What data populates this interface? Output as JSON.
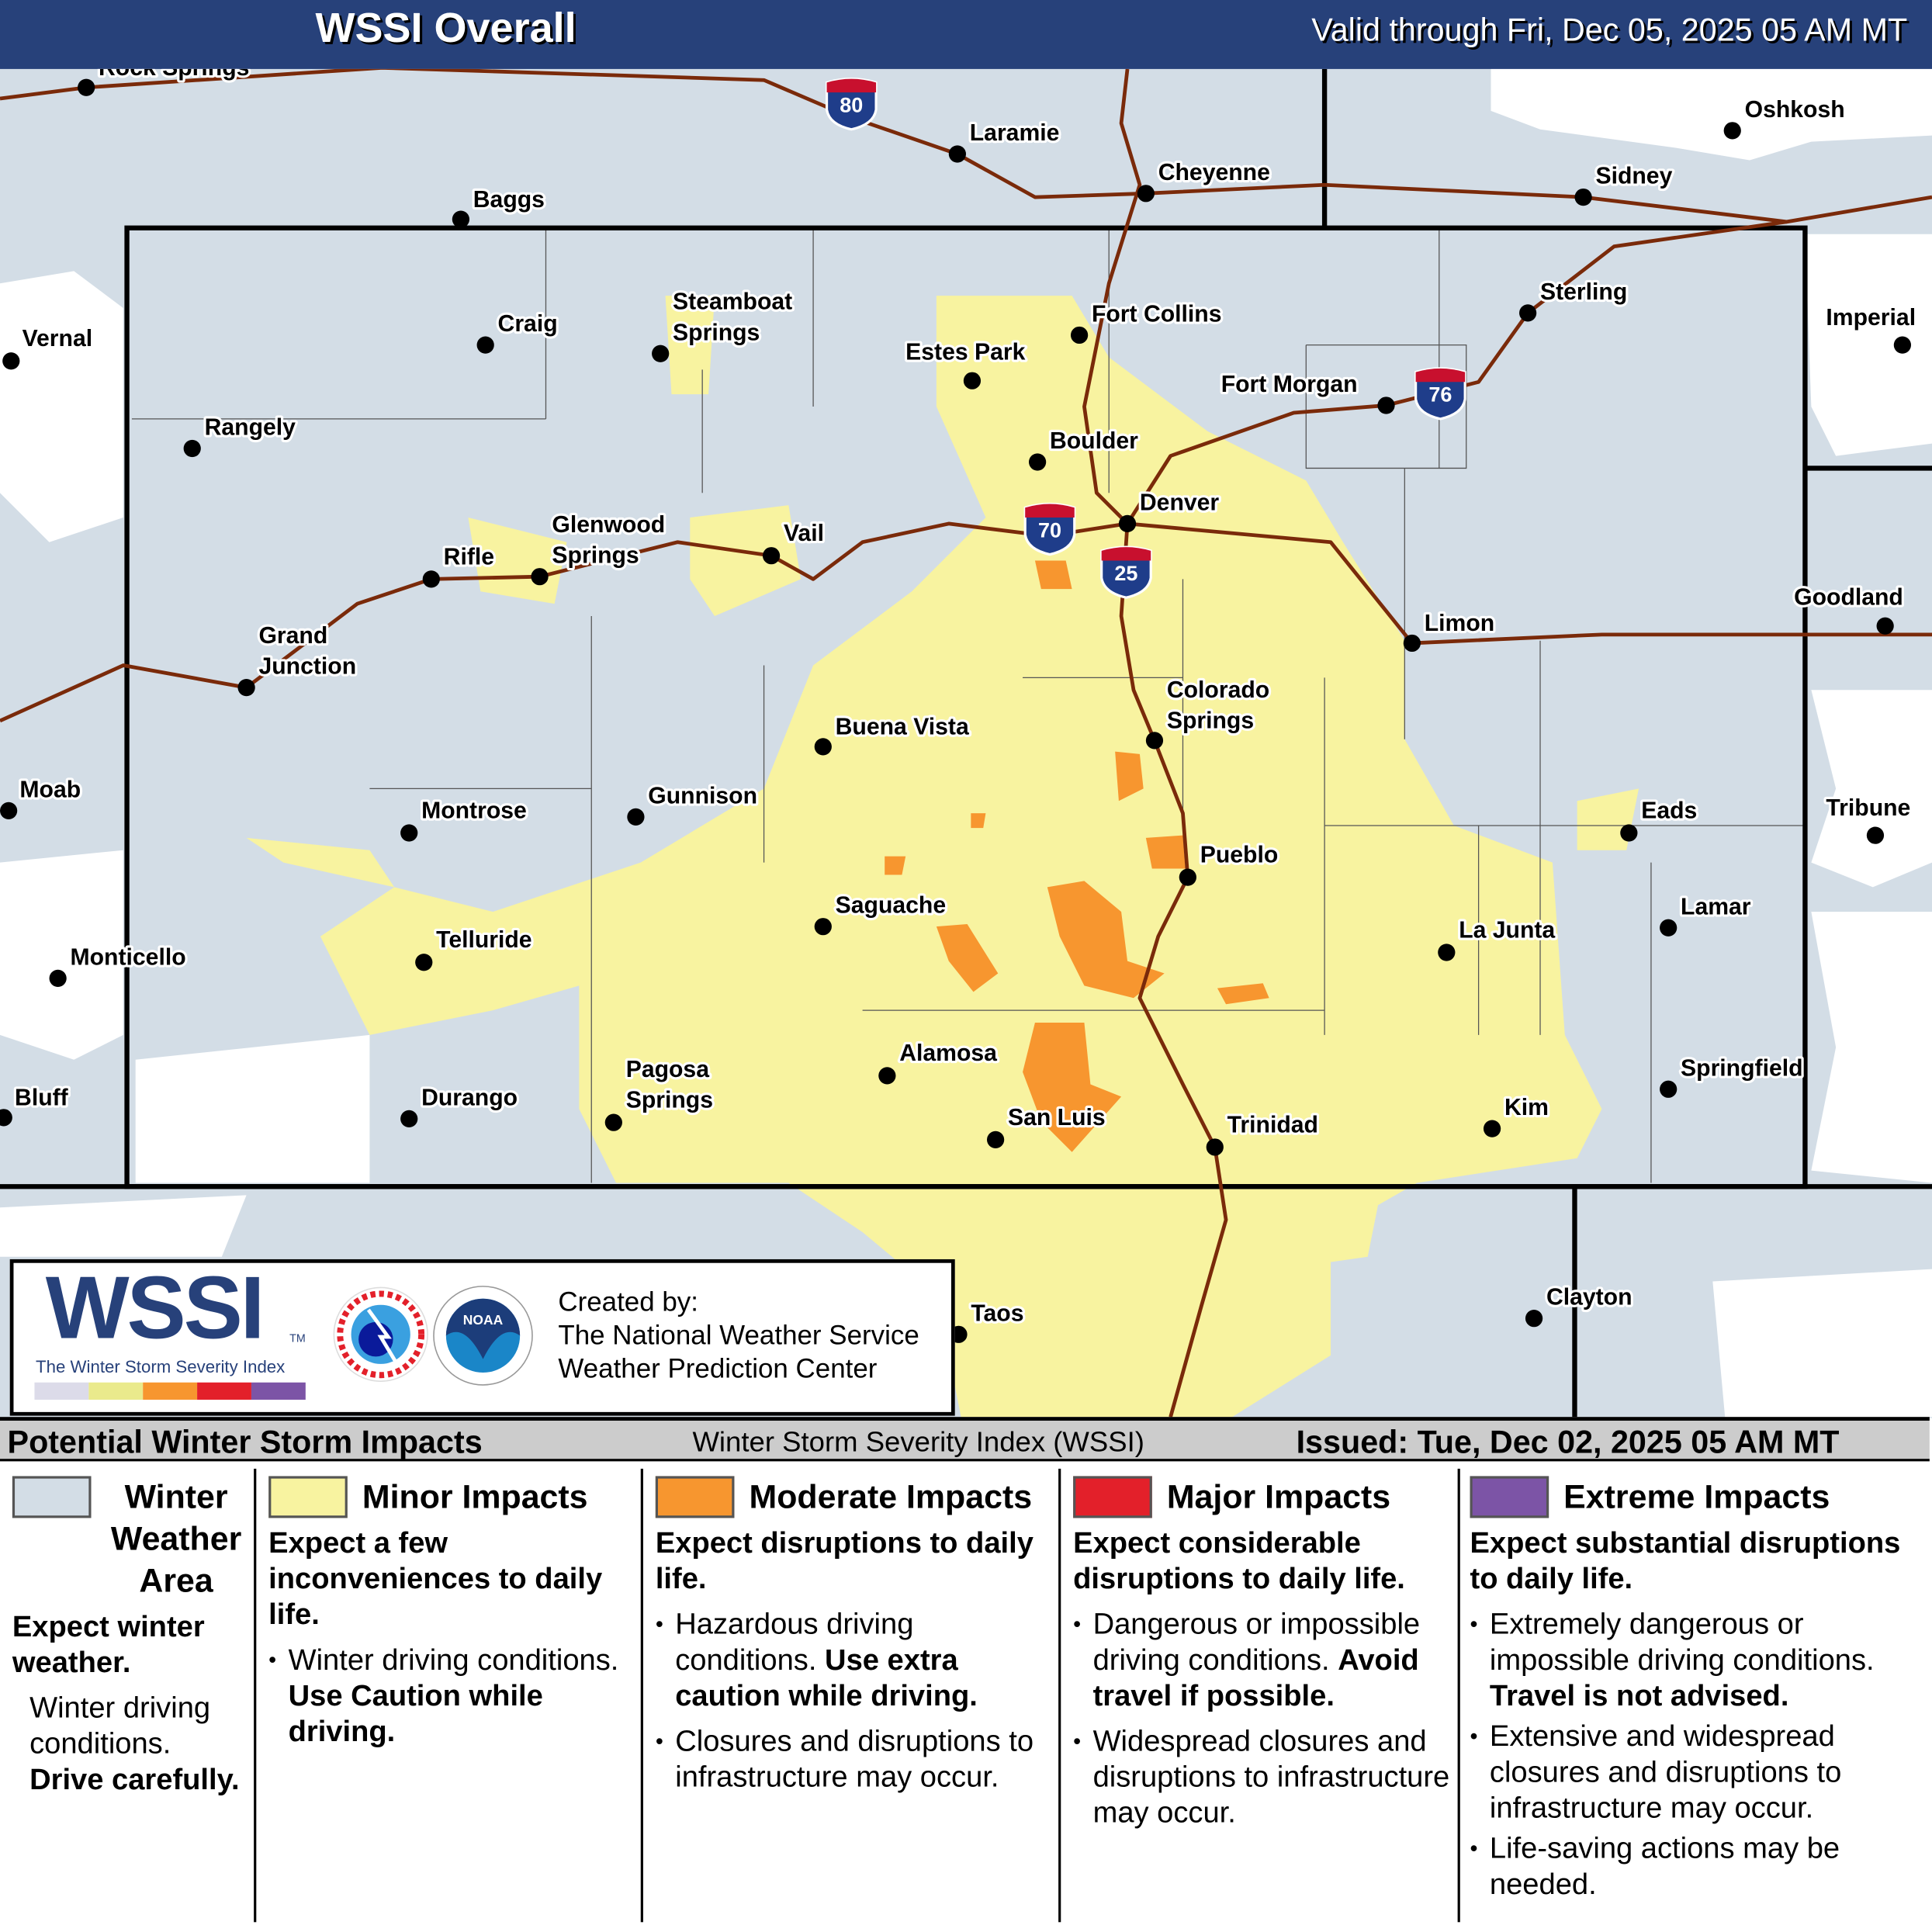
{
  "header": {
    "title": "WSSI Overall",
    "valid": "Valid through Fri, Dec 05, 2025 05 AM MT"
  },
  "colors": {
    "header": "#27417a",
    "winter_weather_area": "#d3dde6",
    "minor": "#f8f3a0",
    "moderate": "#f7962f",
    "major": "#e3202a",
    "extreme": "#7c54a6",
    "roads": "#7a2a0a"
  },
  "map": {
    "cities": [
      "Rock Springs",
      "Baggs",
      "Laramie",
      "Cheyenne",
      "Oshkosh",
      "Sidney",
      "Vernal",
      "Craig",
      "Steamboat|Springs",
      "Fort Collins",
      "Estes Park",
      "Sterling",
      "Imperial",
      "Fort Morgan",
      "Rangely",
      "Boulder",
      "Denver",
      "Glenwood|Springs",
      "Vail",
      "Rifle",
      "Grand|Junction",
      "Limon",
      "Goodland",
      "Colorado|Springs",
      "Buena Vista",
      "Moab",
      "Gunnison",
      "Montrose",
      "Eads",
      "Tribune",
      "Pueblo",
      "Saguache",
      "Telluride",
      "La Junta",
      "Lamar",
      "Monticello",
      "Alamosa",
      "Springfield",
      "Bluff",
      "Durango",
      "Pagosa|Springs",
      "Kim",
      "San Luis",
      "Trinidad",
      "Taos",
      "Clayton"
    ],
    "interstates": [
      "80",
      "76",
      "70",
      "25"
    ]
  },
  "logo": {
    "wssi": "WSSI",
    "tm": "TM",
    "subtitle": "The Winter Storm Severity Index",
    "nws": "NATIONAL WEATHER SERVICE",
    "noaa": "NOAA",
    "created_by": "Created by:",
    "org1": "The National Weather Service",
    "org2": "Weather Prediction Center"
  },
  "bar": {
    "left": "Potential Winter Storm Impacts",
    "center": "Winter Storm Severity Index (WSSI)",
    "right": "Issued: Tue, Dec 02, 2025 05 AM MT"
  },
  "legend": [
    {
      "title": "Winter Weather Area",
      "subtitle": "Expect winter weather.",
      "text": "Winter driving conditions.",
      "text_bold": "Drive carefully."
    },
    {
      "title": "Minor Impacts",
      "subtitle": "Expect a few inconveniences to daily life.",
      "bullets": [
        {
          "text": "Winter driving conditions.",
          "bold": "Use Caution while driving."
        }
      ]
    },
    {
      "title": "Moderate Impacts",
      "subtitle": "Expect disruptions to daily life.",
      "bullets": [
        {
          "text": "Hazardous driving conditions.",
          "bold": "Use extra caution while driving."
        },
        {
          "text": "Closures and disruptions to infrastructure may occur."
        }
      ]
    },
    {
      "title": "Major Impacts",
      "subtitle": "Expect considerable disruptions to daily life.",
      "bullets": [
        {
          "text": "Dangerous or impossible driving conditions.",
          "bold": "Avoid travel if possible."
        },
        {
          "text": "Widespread closures and disruptions to infrastructure may occur."
        }
      ]
    },
    {
      "title": "Extreme Impacts",
      "subtitle": "Expect substantial disruptions to daily life.",
      "bullets": [
        {
          "text": "Extremely dangerous or impossible driving conditions.",
          "bold": "Travel is not advised."
        },
        {
          "text": "Extensive and widespread closures and disruptions to infrastructure may occur."
        },
        {
          "text": "Life-saving actions may be needed."
        }
      ]
    }
  ]
}
